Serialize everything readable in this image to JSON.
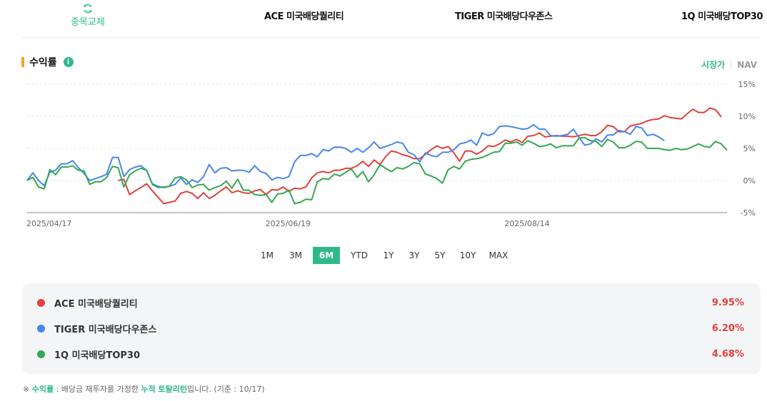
{
  "header": {
    "swap_label": "종목교체",
    "funds": [
      "ACE 미국배당퀄리티",
      "TIGER 미국배당다우존스",
      "1Q 미국배당TOP30"
    ]
  },
  "section": {
    "title": "수익률",
    "info_icon": "i",
    "price_toggle": [
      "시장가",
      "NAV"
    ],
    "active_price": "시장가"
  },
  "period_tabs": [
    "1M",
    "3M",
    "6M",
    "YTD",
    "1Y",
    "3Y",
    "5Y",
    "10Y",
    "MAX"
  ],
  "active_period": "6M",
  "legend": [
    {
      "name": "ACE 미국배당퀄리티",
      "value": "9.95%",
      "color": "#e2413b"
    },
    {
      "name": "TIGER 미국배당다우존스",
      "value": "6.20%",
      "color": "#4a86e8"
    },
    {
      "name": "1Q 미국배당TOP30",
      "value": "4.68%",
      "color": "#34a853"
    }
  ],
  "footnote": {
    "prefix": "※",
    "term": "수익률",
    "mid": " : 배당금 재투자를 가정한 ",
    "highlight": "누적 토탈리턴",
    "suffix": "입니다. (기준 : 10/17)"
  },
  "chart_data": {
    "type": "line",
    "x_tick_labels": [
      "2025/04/17",
      "2025/06/19",
      "2025/08/14"
    ],
    "x_tick_index": [
      0,
      42,
      84
    ],
    "y_ticks": [
      "15%",
      "10%",
      "5%",
      "0%",
      "-5%"
    ],
    "ylim": [
      -5,
      15
    ],
    "grid": true,
    "series": [
      {
        "name": "ACE 미국배당퀄리티",
        "color": "#e2413b",
        "start_index": 16,
        "values": [
          0.0,
          0.2,
          -2.2,
          -1.6,
          -1.1,
          -0.5,
          -1.6,
          -2.6,
          -3.6,
          -3.4,
          -3.2,
          -2.0,
          -1.7,
          -2.0,
          -2.8,
          -1.9,
          -2.8,
          -2.3,
          -1.6,
          -1.0,
          -1.9,
          -1.6,
          -1.9,
          -2.0,
          -1.6,
          -1.4,
          -2.2,
          -1.4,
          -1.5,
          -1.0,
          -1.7,
          -1.2,
          -1.3,
          -1.0,
          0.4,
          1.2,
          1.4,
          1.2,
          1.6,
          1.6,
          1.9,
          1.9,
          2.3,
          3.0,
          2.2,
          3.2,
          2.5,
          3.7,
          4.6,
          4.4,
          4.0,
          3.8,
          3.4,
          3.4,
          4.1,
          4.8,
          5.4,
          5.0,
          5.3,
          4.3,
          3.0,
          4.6,
          4.6,
          4.1,
          4.6,
          5.4,
          5.3,
          5.7,
          6.3,
          6.0,
          6.4,
          5.9,
          6.9,
          7.0,
          7.4,
          6.8,
          6.9,
          7.0,
          6.9,
          6.9,
          6.8,
          7.0,
          7.2,
          7.0,
          7.0,
          7.6,
          8.6,
          8.4,
          7.6,
          7.6,
          8.5,
          8.7,
          8.9,
          9.3,
          9.5,
          9.6,
          10.1,
          9.8,
          9.7,
          9.6,
          10.4,
          11.1,
          10.6,
          10.6,
          11.3,
          11.0,
          9.9
        ]
      },
      {
        "name": "TIGER 미국배당다우존스",
        "color": "#4a86e8",
        "start_index": 0,
        "values": [
          0.0,
          1.2,
          0.0,
          -0.8,
          1.3,
          1.6,
          2.6,
          2.6,
          3.1,
          2.0,
          1.1,
          0.0,
          0.3,
          0.6,
          1.0,
          3.6,
          3.6,
          0.6,
          1.7,
          2.1,
          2.3,
          1.6,
          -0.5,
          -0.9,
          -1.1,
          -0.9,
          -0.6,
          0.4,
          -0.6,
          0.1,
          -0.3,
          0.6,
          2.5,
          1.2,
          1.9,
          2.0,
          1.5,
          1.6,
          1.6,
          1.3,
          2.3,
          1.4,
          1.1,
          0.1,
          0.5,
          0.3,
          0.6,
          2.9,
          3.9,
          3.9,
          4.2,
          3.7,
          4.8,
          4.6,
          5.2,
          5.2,
          5.0,
          4.4,
          5.0,
          4.4,
          5.1,
          6.0,
          5.0,
          5.3,
          5.6,
          6.0,
          5.8,
          4.4,
          4.0,
          2.9,
          4.3,
          3.9,
          3.7,
          4.4,
          4.4,
          4.8,
          5.7,
          5.9,
          6.3,
          5.5,
          7.4,
          7.0,
          7.3,
          8.4,
          8.5,
          8.4,
          8.2,
          8.0,
          8.1,
          8.7,
          8.0,
          8.0,
          7.0,
          6.9,
          7.0,
          7.2,
          8.0,
          6.7,
          5.5,
          5.7,
          6.5,
          6.0,
          7.1,
          7.1,
          7.8,
          7.6,
          7.2,
          8.4,
          8.2,
          7.0,
          7.2,
          6.8,
          6.2
        ]
      },
      {
        "name": "1Q 미국배당TOP30",
        "color": "#34a853",
        "start_index": 0,
        "values": [
          0.0,
          0.5,
          -1.0,
          -1.3,
          1.7,
          0.9,
          2.1,
          2.1,
          2.3,
          1.6,
          1.5,
          -0.6,
          -0.2,
          -0.2,
          0.5,
          2.2,
          2.0,
          -1.0,
          0.9,
          1.5,
          1.9,
          1.6,
          -0.6,
          -1.1,
          -1.0,
          -0.9,
          0.4,
          0.6,
          0.1,
          -1.1,
          -0.7,
          -0.6,
          -1.5,
          -1.1,
          -0.8,
          -0.1,
          -1.2,
          0.2,
          -1.5,
          -1.5,
          -2.2,
          -2.3,
          -2.2,
          -3.4,
          -2.1,
          -2.0,
          -1.5,
          -3.6,
          -3.4,
          -2.9,
          -3.0,
          -0.2,
          0.3,
          0.2,
          1.0,
          0.7,
          1.3,
          1.8,
          0.5,
          1.4,
          -0.2,
          0.9,
          2.5,
          1.9,
          1.4,
          2.0,
          1.8,
          2.2,
          2.8,
          2.6,
          1.0,
          0.7,
          0.3,
          -0.4,
          1.7,
          2.2,
          1.8,
          3.0,
          3.3,
          3.4,
          3.6,
          4.0,
          4.4,
          4.5,
          5.8,
          5.8,
          6.0,
          5.5,
          6.2,
          5.8,
          5.3,
          5.4,
          5.7,
          5.1,
          5.4,
          5.4,
          5.4,
          6.6,
          6.7,
          6.2,
          6.1,
          5.3,
          6.4,
          6.0,
          5.1,
          5.1,
          5.5,
          6.1,
          6.0,
          5.0,
          5.0,
          5.0,
          4.8,
          4.7,
          5.0,
          4.8,
          4.9,
          5.3,
          5.7,
          5.3,
          5.2,
          6.1,
          5.7,
          4.7
        ]
      }
    ]
  }
}
